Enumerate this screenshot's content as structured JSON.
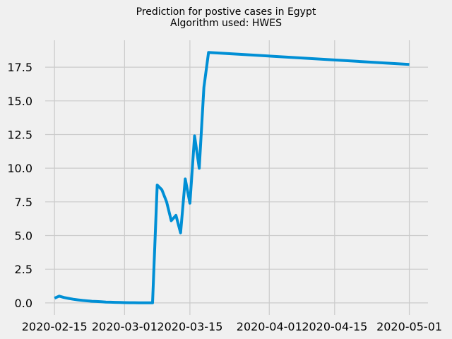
{
  "chart_data": {
    "type": "line",
    "title_line1": "Prediction for postive cases in Egypt",
    "title_line2": "Algorithm used: HWES",
    "xlabel": "",
    "ylabel": "",
    "x_tick_labels": [
      "2020-02-15",
      "2020-03-01",
      "2020-03-15",
      "2020-04-01",
      "2020-04-15",
      "2020-05-01"
    ],
    "x_tick_dates": [
      "2020-02-15",
      "2020-03-01",
      "2020-03-15",
      "2020-04-01",
      "2020-04-15",
      "2020-05-01"
    ],
    "y_ticks": [
      0.0,
      2.5,
      5.0,
      7.5,
      10.0,
      12.5,
      15.0,
      17.5
    ],
    "y_tick_labels": [
      "0.0",
      "2.5",
      "5.0",
      "7.5",
      "10.0",
      "12.5",
      "15.0",
      "17.5"
    ],
    "xlim": [
      "2020-02-13",
      "2020-05-05"
    ],
    "ylim": [
      -0.9,
      19.5
    ],
    "grid": true,
    "line_color": "#008fd5",
    "grid_color": "#cbcbcb",
    "background_color": "#f0f0f0",
    "series": [
      {
        "x": [
          "2020-02-15",
          "2020-02-16",
          "2020-02-17",
          "2020-02-18",
          "2020-02-19",
          "2020-02-20",
          "2020-02-21",
          "2020-02-22",
          "2020-02-23",
          "2020-02-24",
          "2020-02-25",
          "2020-02-26",
          "2020-02-27",
          "2020-02-28",
          "2020-02-29",
          "2020-03-01",
          "2020-03-02",
          "2020-03-03",
          "2020-03-04",
          "2020-03-05",
          "2020-03-06",
          "2020-03-07",
          "2020-03-08",
          "2020-03-09",
          "2020-03-10",
          "2020-03-11",
          "2020-03-12",
          "2020-03-13",
          "2020-03-14",
          "2020-03-15",
          "2020-03-16",
          "2020-03-17",
          "2020-03-18",
          "2020-03-19",
          "2020-05-01"
        ],
        "y": [
          0.35,
          0.5,
          0.4,
          0.33,
          0.27,
          0.22,
          0.18,
          0.15,
          0.12,
          0.1,
          0.08,
          0.06,
          0.05,
          0.04,
          0.03,
          0.02,
          0.01,
          0.01,
          0.0,
          0.0,
          0.0,
          0.0,
          8.75,
          8.4,
          7.5,
          6.1,
          6.5,
          5.2,
          9.2,
          7.4,
          12.4,
          10.0,
          16.0,
          18.6,
          17.7
        ]
      }
    ]
  }
}
